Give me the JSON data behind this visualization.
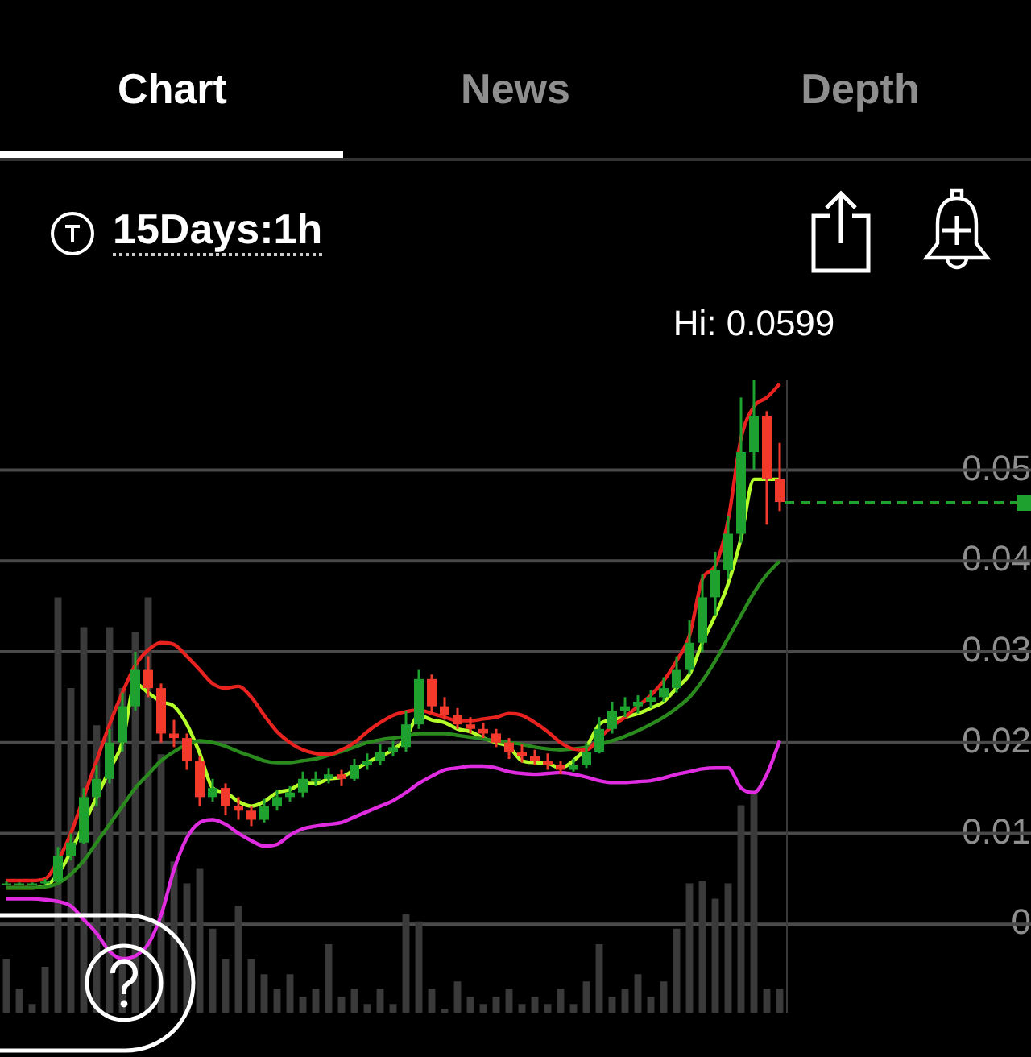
{
  "chart_data": {
    "type": "candlestick",
    "title": "15Days:1h",
    "annotations": [
      "Chart",
      "News",
      "Depth",
      {
        "text": "Hi: 0.0599",
        "y": 0.0599
      }
    ],
    "categories": [
      null,
      null,
      null,
      null,
      null,
      null,
      null,
      null,
      null,
      null,
      null,
      null,
      null,
      null,
      null,
      null,
      null,
      null,
      null,
      null,
      null,
      null,
      null,
      null,
      null,
      null,
      null,
      null,
      null,
      null,
      null,
      null,
      null,
      null,
      null,
      null,
      null,
      null,
      null,
      null,
      null,
      null,
      null,
      null,
      null,
      null,
      null,
      null,
      null,
      null,
      null,
      null,
      null,
      null,
      null,
      null,
      null,
      null,
      null,
      null,
      null
    ],
    "ohlc": [
      [
        0.0045,
        0.0047,
        0.0043,
        0.0045
      ],
      [
        0.0045,
        0.0046,
        0.0044,
        0.0045
      ],
      [
        0.0045,
        0.0046,
        0.0044,
        0.0045
      ],
      [
        0.0045,
        0.005,
        0.0044,
        0.0047
      ],
      [
        0.0047,
        0.0085,
        0.0046,
        0.0075
      ],
      [
        0.0075,
        0.01,
        0.007,
        0.009
      ],
      [
        0.009,
        0.015,
        0.0088,
        0.014
      ],
      [
        0.014,
        0.0175,
        0.013,
        0.016
      ],
      [
        0.016,
        0.0215,
        0.0155,
        0.02
      ],
      [
        0.02,
        0.0255,
        0.019,
        0.024
      ],
      [
        0.024,
        0.03,
        0.0235,
        0.028
      ],
      [
        0.028,
        0.0295,
        0.025,
        0.026
      ],
      [
        0.026,
        0.0265,
        0.02,
        0.021
      ],
      [
        0.021,
        0.0225,
        0.0195,
        0.0205
      ],
      [
        0.0205,
        0.021,
        0.017,
        0.018
      ],
      [
        0.018,
        0.0185,
        0.013,
        0.014
      ],
      [
        0.014,
        0.016,
        0.0135,
        0.015
      ],
      [
        0.015,
        0.0155,
        0.012,
        0.013
      ],
      [
        0.013,
        0.014,
        0.0115,
        0.0125
      ],
      [
        0.0125,
        0.013,
        0.0108,
        0.0115
      ],
      [
        0.0115,
        0.0138,
        0.0112,
        0.013
      ],
      [
        0.013,
        0.0148,
        0.0125,
        0.014
      ],
      [
        0.014,
        0.0152,
        0.0135,
        0.0145
      ],
      [
        0.0145,
        0.0168,
        0.014,
        0.016
      ],
      [
        0.016,
        0.0168,
        0.0152,
        0.016
      ],
      [
        0.016,
        0.0172,
        0.0155,
        0.0165
      ],
      [
        0.0165,
        0.017,
        0.0152,
        0.016
      ],
      [
        0.016,
        0.0182,
        0.0158,
        0.0175
      ],
      [
        0.0175,
        0.0188,
        0.017,
        0.018
      ],
      [
        0.018,
        0.0198,
        0.0175,
        0.019
      ],
      [
        0.019,
        0.0202,
        0.0185,
        0.0195
      ],
      [
        0.0195,
        0.0235,
        0.019,
        0.022
      ],
      [
        0.022,
        0.028,
        0.0215,
        0.027
      ],
      [
        0.027,
        0.0275,
        0.0232,
        0.024
      ],
      [
        0.024,
        0.025,
        0.0225,
        0.023
      ],
      [
        0.023,
        0.0238,
        0.0215,
        0.022
      ],
      [
        0.022,
        0.0228,
        0.021,
        0.0215
      ],
      [
        0.0215,
        0.0222,
        0.0205,
        0.021
      ],
      [
        0.021,
        0.0215,
        0.0195,
        0.02
      ],
      [
        0.02,
        0.0205,
        0.0182,
        0.019
      ],
      [
        0.019,
        0.0198,
        0.0178,
        0.0185
      ],
      [
        0.0185,
        0.0192,
        0.0175,
        0.018
      ],
      [
        0.018,
        0.0188,
        0.017,
        0.0175
      ],
      [
        0.0175,
        0.018,
        0.0165,
        0.017
      ],
      [
        0.017,
        0.0182,
        0.0168,
        0.0175
      ],
      [
        0.0175,
        0.02,
        0.0172,
        0.019
      ],
      [
        0.019,
        0.0228,
        0.0188,
        0.0215
      ],
      [
        0.0215,
        0.0245,
        0.021,
        0.0235
      ],
      [
        0.0235,
        0.025,
        0.0228,
        0.024
      ],
      [
        0.024,
        0.0252,
        0.0232,
        0.0245
      ],
      [
        0.0245,
        0.0258,
        0.0238,
        0.025
      ],
      [
        0.025,
        0.0272,
        0.0245,
        0.026
      ],
      [
        0.026,
        0.0295,
        0.0255,
        0.028
      ],
      [
        0.028,
        0.0335,
        0.0275,
        0.031
      ],
      [
        0.031,
        0.0385,
        0.03,
        0.036
      ],
      [
        0.036,
        0.041,
        0.034,
        0.039
      ],
      [
        0.039,
        0.045,
        0.038,
        0.043
      ],
      [
        0.043,
        0.058,
        0.042,
        0.052
      ],
      [
        0.052,
        0.0599,
        0.05,
        0.056
      ],
      [
        0.056,
        0.0565,
        0.044,
        0.049
      ],
      [
        0.049,
        0.053,
        0.0455,
        0.0465
      ]
    ],
    "series": [
      {
        "type": "bar",
        "color": "#3a3a3a",
        "values": [
          0.006,
          0.0027,
          0.001,
          0.0051,
          0.0458,
          0.0358,
          0.0425,
          0.0317,
          0.0425,
          0.0358,
          0.042,
          0.0458,
          0.0285,
          0.0167,
          0.0143,
          0.0159,
          0.0093,
          0.006,
          0.0118,
          0.006,
          0.0043,
          0.0027,
          0.0043,
          0.0018,
          0.0027,
          0.0076,
          0.0018,
          0.0027,
          0.001,
          0.0027,
          0.001,
          0.0109,
          0.0101,
          0.0027,
          0.0005,
          0.0035,
          0.0018,
          0.001,
          0.0018,
          0.0027,
          0.001,
          0.0018,
          0.001,
          0.0027,
          0.001,
          0.0035,
          0.0076,
          0.0018,
          0.0027,
          0.0043,
          0.0018,
          0.0035,
          0.0093,
          0.0143,
          0.0146,
          0.0126,
          0.0143,
          0.0229,
          0.0242,
          0.0027,
          0.0027
        ],
        "base": [
          -0.0098,
          -0.0098,
          -0.0098,
          -0.0098,
          -0.0098,
          -0.0098,
          -0.0098,
          -0.0098,
          -0.0098,
          -0.0098,
          -0.0098,
          -0.0098,
          -0.0098,
          -0.0098,
          -0.0098,
          -0.0098,
          -0.0098,
          -0.0098,
          -0.0098,
          -0.0098,
          -0.0098,
          -0.0098,
          -0.0098,
          -0.0098,
          -0.0098,
          -0.0098,
          -0.0098,
          -0.0098,
          -0.0098,
          -0.0098,
          -0.0098,
          -0.0098,
          -0.0098,
          -0.0098,
          -0.0098,
          -0.0098,
          -0.0098,
          -0.0098,
          -0.0098,
          -0.0098,
          -0.0098,
          -0.0098,
          -0.0098,
          -0.0098,
          -0.0098,
          -0.0098,
          -0.0098,
          -0.0098,
          -0.0098,
          -0.0098,
          -0.0098,
          -0.0098,
          -0.0098,
          -0.0098,
          -0.0098,
          -0.0098,
          -0.0098,
          -0.0098,
          -0.0098,
          -0.0098,
          -0.0098
        ]
      },
      {
        "type": "line",
        "color": "#e8231f",
        "values": [
          0.0048,
          0.0048,
          0.0048,
          0.005,
          0.007,
          0.01,
          0.014,
          0.018,
          0.022,
          0.0255,
          0.0285,
          0.0302,
          0.031,
          0.0308,
          0.0295,
          0.028,
          0.0265,
          0.026,
          0.0262,
          0.025,
          0.023,
          0.0212,
          0.02,
          0.0192,
          0.0188,
          0.0187,
          0.0192,
          0.02,
          0.0212,
          0.0222,
          0.023,
          0.0234,
          0.0236,
          0.0232,
          0.0228,
          0.0224,
          0.0224,
          0.0226,
          0.0228,
          0.0232,
          0.023,
          0.0222,
          0.0212,
          0.02,
          0.0193,
          0.0192,
          0.0205,
          0.0218,
          0.0228,
          0.024,
          0.0252,
          0.0268,
          0.029,
          0.0318,
          0.038,
          0.0395,
          0.0445,
          0.0535,
          0.057,
          0.058,
          0.0595
        ]
      },
      {
        "type": "line",
        "color": "#2a8a1e",
        "values": [
          0.004,
          0.004,
          0.004,
          0.0041,
          0.0045,
          0.0055,
          0.007,
          0.009,
          0.011,
          0.013,
          0.015,
          0.0165,
          0.018,
          0.019,
          0.0198,
          0.0202,
          0.02,
          0.0196,
          0.019,
          0.0185,
          0.018,
          0.0178,
          0.0178,
          0.018,
          0.0182,
          0.0186,
          0.019,
          0.0195,
          0.02,
          0.0203,
          0.0205,
          0.0207,
          0.021,
          0.021,
          0.021,
          0.0208,
          0.0206,
          0.0204,
          0.0202,
          0.02,
          0.0198,
          0.0195,
          0.0193,
          0.0192,
          0.0193,
          0.0195,
          0.0198,
          0.0202,
          0.0207,
          0.0213,
          0.022,
          0.0228,
          0.0238,
          0.025,
          0.0268,
          0.029,
          0.0315,
          0.034,
          0.0365,
          0.0385,
          0.04
        ]
      },
      {
        "type": "line",
        "color": "#e02ce0",
        "values": [
          0.0028,
          0.0028,
          0.0028,
          0.0027,
          0.0025,
          0.002,
          0.0005,
          -0.001,
          -0.003,
          -0.0038,
          -0.0035,
          -0.0022,
          0.001,
          0.006,
          0.0095,
          0.0112,
          0.0115,
          0.011,
          0.01,
          0.0092,
          0.0086,
          0.0088,
          0.0098,
          0.0105,
          0.0108,
          0.011,
          0.0112,
          0.0118,
          0.0124,
          0.013,
          0.0136,
          0.0145,
          0.0155,
          0.0163,
          0.017,
          0.0172,
          0.0174,
          0.0174,
          0.0172,
          0.0168,
          0.0166,
          0.0165,
          0.0166,
          0.0167,
          0.0165,
          0.0162,
          0.0158,
          0.0156,
          0.0156,
          0.0157,
          0.0158,
          0.0161,
          0.0165,
          0.0168,
          0.0171,
          0.0172,
          0.0172,
          0.015,
          0.0145,
          0.0165,
          0.0202
        ]
      },
      {
        "type": "line",
        "color": "#b4ff2a",
        "values": [
          0.004,
          0.004,
          0.004,
          0.0042,
          0.0055,
          0.008,
          0.011,
          0.014,
          0.017,
          0.02,
          0.0265,
          0.0255,
          0.0245,
          0.024,
          0.022,
          0.0188,
          0.015,
          0.0145,
          0.0135,
          0.013,
          0.0135,
          0.0145,
          0.0148,
          0.0155,
          0.0155,
          0.016,
          0.0162,
          0.017,
          0.0178,
          0.0185,
          0.0192,
          0.0205,
          0.023,
          0.0225,
          0.0222,
          0.0215,
          0.0212,
          0.0205,
          0.02,
          0.0195,
          0.018,
          0.0178,
          0.0177,
          0.0172,
          0.018,
          0.0195,
          0.022,
          0.0225,
          0.0228,
          0.0232,
          0.0238,
          0.0245,
          0.026,
          0.0275,
          0.031,
          0.034,
          0.0375,
          0.0425,
          0.049,
          0.049,
          0.049
        ]
      }
    ],
    "ylim": [
      -0.0098,
      0.0599
    ],
    "yticks": [
      0,
      0.01,
      0.02,
      0.03,
      0.04,
      0.05
    ],
    "tick_labels": "y",
    "grid": "y",
    "legend": false
  }
}
